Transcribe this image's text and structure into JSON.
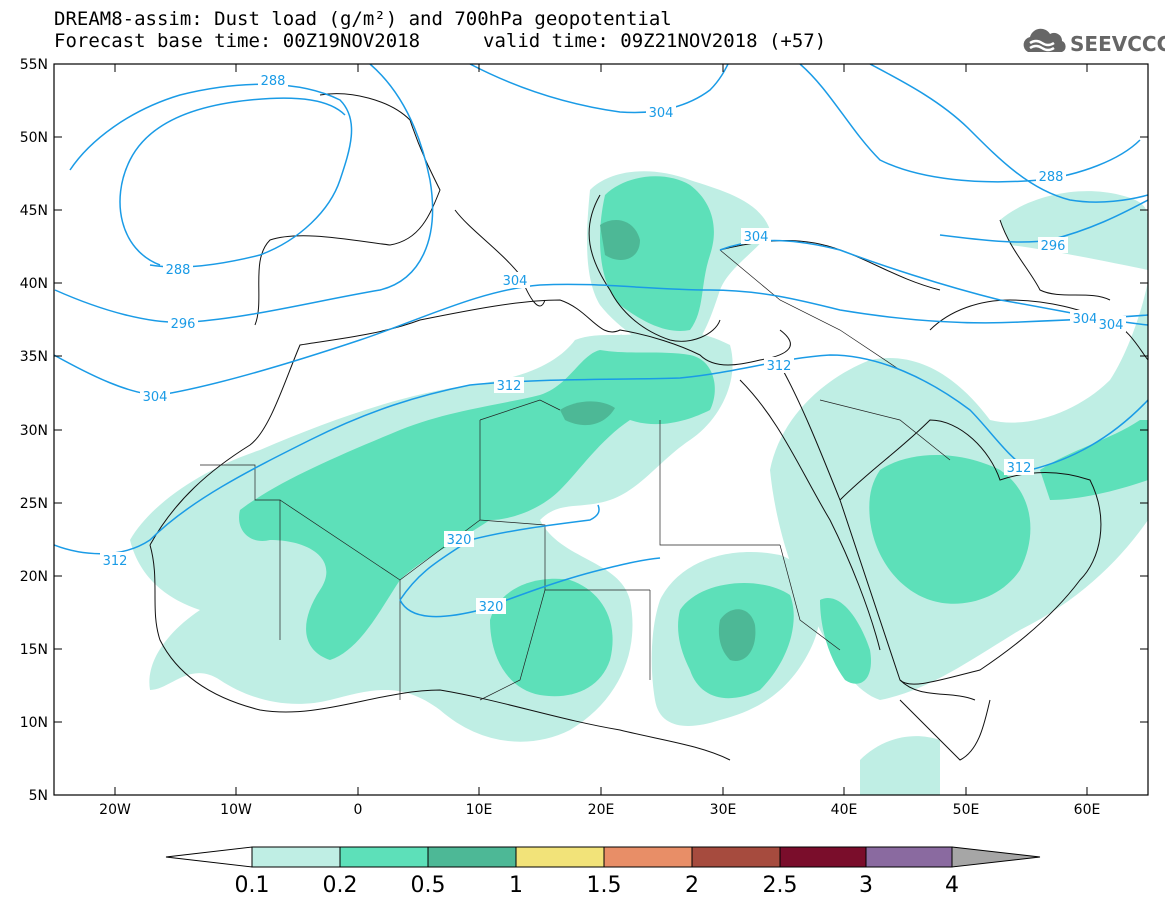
{
  "header": {
    "title_line1": "DREAM8-assim: Dust load (g/m²) and 700hPa geopotential",
    "title_line2": "Forecast base time: 00Z19NOV2018",
    "valid_time": "valid time: 09Z21NOV2018 (+57)",
    "logo_text": "SEEVCCC",
    "logo_icon": "cloud-icon"
  },
  "map": {
    "lon_range": [
      -25,
      65
    ],
    "lat_range": [
      5,
      55
    ],
    "lat_labels": [
      "55N",
      "50N",
      "45N",
      "40N",
      "35N",
      "30N",
      "25N",
      "20N",
      "15N",
      "10N",
      "5N"
    ],
    "lon_labels": [
      "20W",
      "10W",
      "0",
      "10E",
      "20E",
      "30E",
      "40E",
      "50E",
      "60E"
    ],
    "contour_labels": [
      "288",
      "288",
      "288",
      "296",
      "296",
      "304",
      "304",
      "304",
      "304",
      "304",
      "304",
      "312",
      "312",
      "312",
      "312",
      "320",
      "320"
    ],
    "colors": {
      "contour_line": "#1a9be6",
      "dust_0_1": "#bfeee4",
      "dust_0_2": "#5de0b9",
      "dust_0_5": "#4db896",
      "dust_1": "#f2e379",
      "dust_1_5": "#e88e67",
      "dust_2": "#a64b3e",
      "dust_2_5": "#7a0d2b",
      "dust_3": "#8a6aa0",
      "dust_4": "#a6a6a6"
    }
  },
  "colorbar": {
    "labels": [
      "0.1",
      "0.2",
      "0.5",
      "1",
      "1.5",
      "2",
      "2.5",
      "3",
      "4"
    ],
    "colors": [
      "#bfeee4",
      "#5de0b9",
      "#4db896",
      "#f2e379",
      "#e88e67",
      "#a64b3e",
      "#7a0d2b",
      "#8a6aa0"
    ]
  }
}
